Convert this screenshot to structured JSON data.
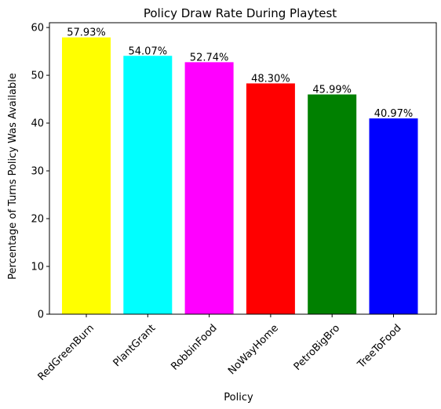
{
  "chart_data": {
    "type": "bar",
    "title": "Policy Draw Rate During Playtest",
    "xlabel": "Policy",
    "ylabel": "Percentage of Turns Policy Was Available",
    "ylim": [
      0,
      61
    ],
    "yticks": [
      0,
      10,
      20,
      30,
      40,
      50,
      60
    ],
    "grid": false,
    "categories": [
      "RedGreenBurn",
      "PlantGrant",
      "RobbinFood",
      "NoWayHome",
      "PetroBigBro",
      "TreeToFood"
    ],
    "values": [
      57.93,
      54.07,
      52.74,
      48.3,
      45.99,
      40.97
    ],
    "labels": [
      "57.93%",
      "54.07%",
      "52.74%",
      "48.30%",
      "45.99%",
      "40.97%"
    ],
    "colors": [
      "#ffff00",
      "#00ffff",
      "#ff00ff",
      "#ff0000",
      "#008000",
      "#0000ff"
    ]
  }
}
